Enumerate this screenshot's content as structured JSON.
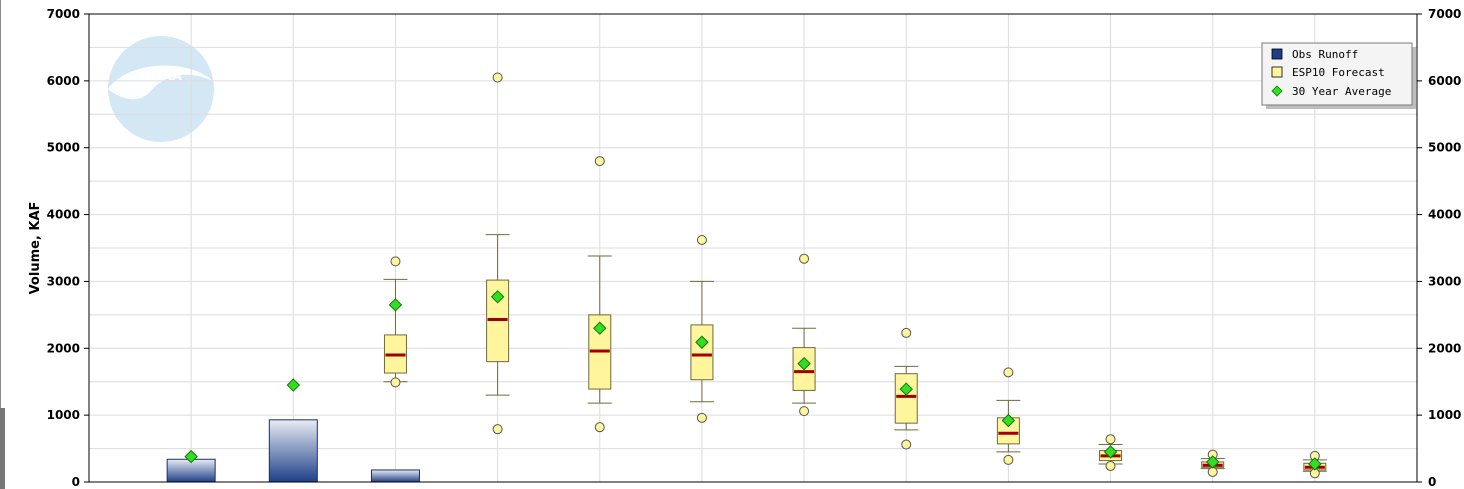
{
  "chart_data": {
    "type": "box",
    "title": "",
    "ylabel": "Volume, KAF",
    "ylabel_right": "",
    "ylim": [
      0,
      7000
    ],
    "yticks": [
      0,
      1000,
      2000,
      3000,
      4000,
      5000,
      6000,
      7000
    ],
    "grid": true,
    "legend_position": "top-right",
    "logo_text": "NOAA",
    "colors": {
      "obs_top": "#e8ecf4",
      "obs_bottom": "#1e3f88",
      "obs_stroke": "#1a2f66",
      "box_fill": "#fff59d",
      "box_stroke": "#6f6a3a",
      "median": "#a00000",
      "avg_fill": "#33dd22",
      "avg_stroke": "#0b7a0b",
      "outlier_fill": "#fff59d",
      "outlier_stroke": "#555555",
      "grid": "#dcdcdc",
      "axis": "#000000",
      "logo": "#cfe5f3"
    },
    "series": [
      {
        "name": "Obs Runoff",
        "type": "bar",
        "values": [
          340,
          930,
          180,
          null,
          null,
          null,
          null,
          null,
          null,
          null,
          null,
          null
        ]
      },
      {
        "name": "ESP10 Forecast",
        "type": "box",
        "boxes": [
          null,
          null,
          {
            "whisker_low": 1500,
            "q1": 1630,
            "median": 1900,
            "q3": 2200,
            "whisker_high": 3030,
            "outliers": [
              3300,
              1490
            ]
          },
          {
            "whisker_low": 1300,
            "q1": 1800,
            "median": 2430,
            "q3": 3020,
            "whisker_high": 3700,
            "outliers": [
              6050,
              790
            ]
          },
          {
            "whisker_low": 1180,
            "q1": 1390,
            "median": 1960,
            "q3": 2500,
            "whisker_high": 3380,
            "outliers": [
              4800,
              820
            ]
          },
          {
            "whisker_low": 1200,
            "q1": 1530,
            "median": 1900,
            "q3": 2350,
            "whisker_high": 3000,
            "outliers": [
              3620,
              960
            ]
          },
          {
            "whisker_low": 1180,
            "q1": 1370,
            "median": 1650,
            "q3": 2010,
            "whisker_high": 2300,
            "outliers": [
              3340,
              1060
            ]
          },
          {
            "whisker_low": 780,
            "q1": 880,
            "median": 1280,
            "q3": 1620,
            "whisker_high": 1730,
            "outliers": [
              2230,
              560
            ]
          },
          {
            "whisker_low": 450,
            "q1": 570,
            "median": 730,
            "q3": 960,
            "whisker_high": 1220,
            "outliers": [
              1640,
              330
            ]
          },
          {
            "whisker_low": 270,
            "q1": 320,
            "median": 390,
            "q3": 470,
            "whisker_high": 560,
            "outliers": [
              640,
              240
            ]
          },
          {
            "whisker_low": 200,
            "q1": 220,
            "median": 250,
            "q3": 300,
            "whisker_high": 350,
            "outliers": [
              410,
              150
            ]
          },
          {
            "whisker_low": 160,
            "q1": 180,
            "median": 220,
            "q3": 280,
            "whisker_high": 330,
            "outliers": [
              390,
              130
            ]
          }
        ]
      },
      {
        "name": "30 Year Average",
        "type": "marker",
        "values": [
          380,
          1450,
          2650,
          2770,
          2300,
          2090,
          1770,
          1390,
          920,
          450,
          300,
          270
        ]
      }
    ]
  }
}
